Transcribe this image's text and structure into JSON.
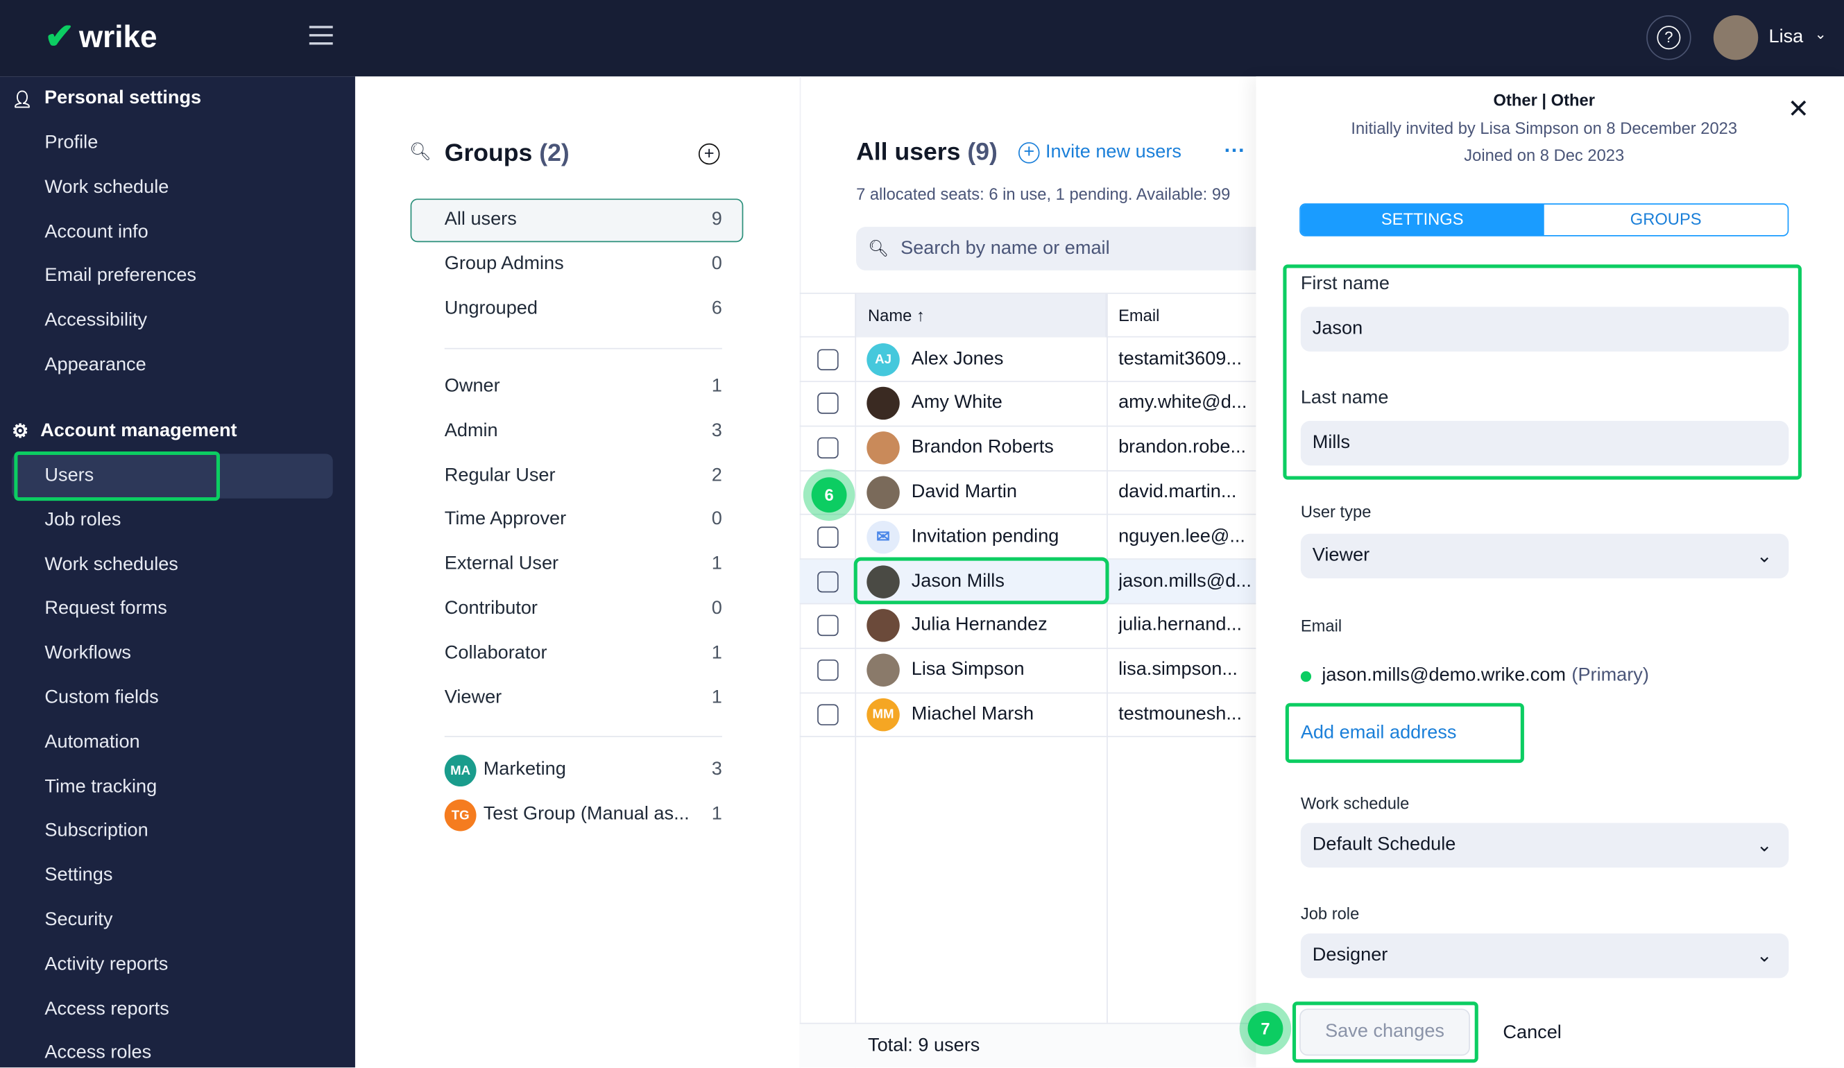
{
  "topbar": {
    "brand": "wrike",
    "user": "Lisa"
  },
  "sidebar": {
    "personal_title": "Personal settings",
    "personal_items": [
      "Profile",
      "Work schedule",
      "Account info",
      "Email preferences",
      "Accessibility",
      "Appearance"
    ],
    "account_title": "Account management",
    "account_items": [
      "Users",
      "Job roles",
      "Work schedules",
      "Request forms",
      "Workflows",
      "Custom fields",
      "Automation",
      "Time tracking",
      "Subscription",
      "Settings",
      "Security",
      "Activity reports",
      "Access reports",
      "Access roles"
    ],
    "active": "Users"
  },
  "groups": {
    "title": "Groups",
    "count": "(2)",
    "items": [
      {
        "label": "All users",
        "count": "9"
      },
      {
        "label": "Group Admins",
        "count": "0"
      },
      {
        "label": "Ungrouped",
        "count": "6"
      }
    ],
    "types": [
      {
        "label": "Owner",
        "count": "1"
      },
      {
        "label": "Admin",
        "count": "3"
      },
      {
        "label": "Regular User",
        "count": "2"
      },
      {
        "label": "Time Approver",
        "count": "0"
      },
      {
        "label": "External User",
        "count": "1"
      },
      {
        "label": "Contributor",
        "count": "0"
      },
      {
        "label": "Collaborator",
        "count": "1"
      },
      {
        "label": "Viewer",
        "count": "1"
      }
    ],
    "custom": [
      {
        "initials": "MA",
        "label": "Marketing",
        "count": "3",
        "color": "#1a9c8c"
      },
      {
        "initials": "TG",
        "label": "Test Group (Manual as...",
        "count": "1",
        "color": "#f57c1f"
      }
    ]
  },
  "users": {
    "title": "All users",
    "count": "(9)",
    "invite": "Invite new users",
    "seats": "7 allocated seats: 6 in use, 1 pending. Available: 99",
    "search_placeholder": "Search by name or email",
    "col_name": "Name",
    "col_email": "Email",
    "rows": [
      {
        "initials": "AJ",
        "name": "Alex Jones",
        "email": "testamit3609...",
        "color": "#45c8dc"
      },
      {
        "initials": "",
        "name": "Amy White",
        "email": "amy.white@d...",
        "color": "#3a2a22"
      },
      {
        "initials": "",
        "name": "Brandon Roberts",
        "email": "brandon.robe...",
        "color": "#c98a5a"
      },
      {
        "initials": "",
        "name": "David Martin",
        "email": "david.martin...",
        "color": "#7a6a5a"
      },
      {
        "initials": "✉",
        "name": "Invitation pending",
        "email": "nguyen.lee@...",
        "color": "#e3ecfb"
      },
      {
        "initials": "",
        "name": "Jason Mills",
        "email": "jason.mills@d...",
        "color": "#4a4a44"
      },
      {
        "initials": "",
        "name": "Julia Hernandez",
        "email": "julia.hernand...",
        "color": "#6b4a3a"
      },
      {
        "initials": "",
        "name": "Lisa Simpson",
        "email": "lisa.simpson...",
        "color": "#8a7a6a"
      },
      {
        "initials": "MM",
        "name": "Miachel Marsh",
        "email": "testmounesh...",
        "color": "#f5a623"
      }
    ],
    "total": "Total: 9 users",
    "step_badge": "6"
  },
  "detail": {
    "heading": "Other | Other",
    "invited": "Initially invited by Lisa Simpson on 8 December 2023",
    "joined": "Joined on 8 Dec 2023",
    "tab_settings": "SETTINGS",
    "tab_groups": "GROUPS",
    "first_name_label": "First name",
    "first_name": "Jason",
    "last_name_label": "Last name",
    "last_name": "Mills",
    "user_type_label": "User type",
    "user_type": "Viewer",
    "email_label": "Email",
    "email": "jason.mills@demo.wrike.com",
    "primary": "(Primary)",
    "add_email": "Add email address",
    "work_schedule_label": "Work schedule",
    "work_schedule": "Default Schedule",
    "job_role_label": "Job role",
    "job_role": "Designer",
    "save": "Save changes",
    "cancel": "Cancel",
    "step_badge": "7"
  },
  "colors": {
    "accent": "#1a8cff",
    "highlight": "#0ccd62",
    "nav": "#1b2340"
  }
}
